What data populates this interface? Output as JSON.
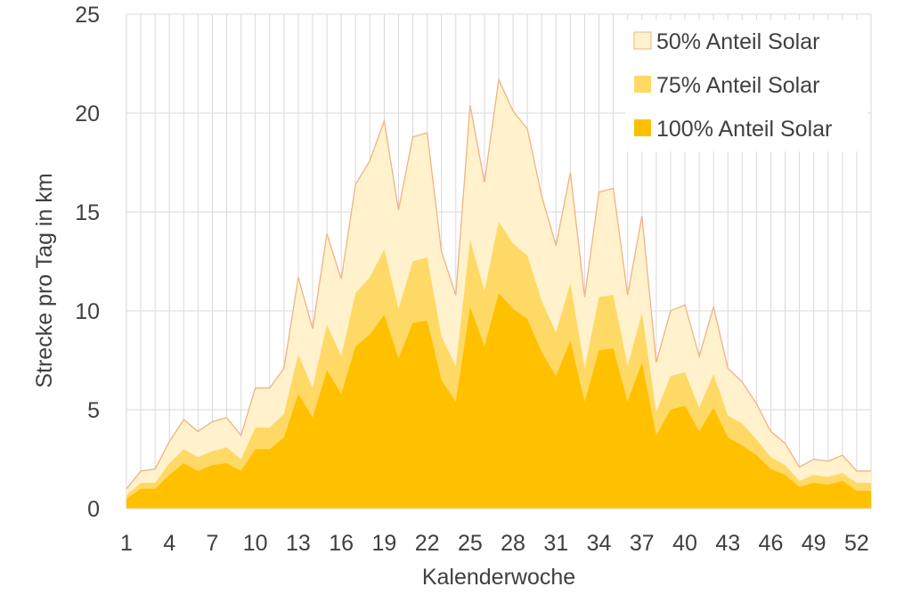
{
  "chart_data": {
    "type": "area",
    "stacked": false,
    "xlabel": "Kalenderwoche",
    "ylabel": "Strecke pro Tag in km",
    "xlim": [
      1,
      53
    ],
    "ylim": [
      0,
      25
    ],
    "x_ticks": [
      1,
      4,
      7,
      10,
      13,
      16,
      19,
      22,
      25,
      28,
      31,
      34,
      37,
      40,
      43,
      46,
      49,
      52
    ],
    "y_ticks": [
      0,
      5,
      10,
      15,
      20,
      25
    ],
    "grid": "vertical lines at every week, horizontal lines at every 5 km",
    "legend_position": "top-right",
    "x": [
      1,
      2,
      3,
      4,
      5,
      6,
      7,
      8,
      9,
      10,
      11,
      12,
      13,
      14,
      15,
      16,
      17,
      18,
      19,
      20,
      21,
      22,
      23,
      24,
      25,
      26,
      27,
      28,
      29,
      30,
      31,
      32,
      33,
      34,
      35,
      36,
      37,
      38,
      39,
      40,
      41,
      42,
      43,
      44,
      45,
      46,
      47,
      48,
      49,
      50,
      51,
      52,
      53
    ],
    "series": [
      {
        "name": "50% Anteil Solar",
        "color": "#FFF2CC",
        "line_color": "#F4B183",
        "values": [
          1.0,
          1.9,
          2.0,
          3.4,
          4.5,
          3.9,
          4.4,
          4.6,
          3.7,
          6.1,
          6.1,
          7.1,
          11.7,
          9.1,
          13.9,
          11.6,
          16.4,
          17.6,
          19.6,
          15.1,
          18.8,
          19.0,
          13.0,
          10.8,
          20.4,
          16.5,
          21.7,
          20.1,
          19.2,
          15.8,
          13.3,
          17.0,
          10.7,
          16.0,
          16.2,
          10.8,
          14.8,
          7.4,
          10.0,
          10.3,
          7.7,
          10.2,
          7.1,
          6.4,
          5.3,
          3.9,
          3.3,
          2.1,
          2.5,
          2.4,
          2.7,
          1.9,
          1.9
        ]
      },
      {
        "name": "75% Anteil Solar",
        "color": "#FFD966",
        "values": [
          0.7,
          1.3,
          1.3,
          2.3,
          3.0,
          2.6,
          2.9,
          3.1,
          2.5,
          4.1,
          4.1,
          4.8,
          7.8,
          6.1,
          9.3,
          7.7,
          10.9,
          11.7,
          13.1,
          10.1,
          12.5,
          12.7,
          8.7,
          7.2,
          13.6,
          11.0,
          14.5,
          13.4,
          12.8,
          10.5,
          8.9,
          11.4,
          7.1,
          10.7,
          10.8,
          7.2,
          9.9,
          4.9,
          6.7,
          6.9,
          5.1,
          6.8,
          4.7,
          4.3,
          3.5,
          2.6,
          2.2,
          1.4,
          1.7,
          1.6,
          1.8,
          1.3,
          1.3
        ]
      },
      {
        "name": "100% Anteil Solar",
        "color": "#FFC000",
        "values": [
          0.5,
          1.0,
          1.0,
          1.7,
          2.3,
          1.9,
          2.2,
          2.3,
          1.9,
          3.0,
          3.0,
          3.6,
          5.8,
          4.6,
          7.0,
          5.8,
          8.2,
          8.8,
          9.8,
          7.6,
          9.4,
          9.5,
          6.5,
          5.4,
          10.2,
          8.2,
          10.9,
          10.1,
          9.6,
          7.9,
          6.7,
          8.5,
          5.4,
          8.0,
          8.1,
          5.4,
          7.4,
          3.7,
          5.0,
          5.2,
          3.9,
          5.1,
          3.6,
          3.2,
          2.7,
          2.0,
          1.7,
          1.1,
          1.3,
          1.2,
          1.4,
          0.9,
          0.9
        ]
      }
    ]
  }
}
